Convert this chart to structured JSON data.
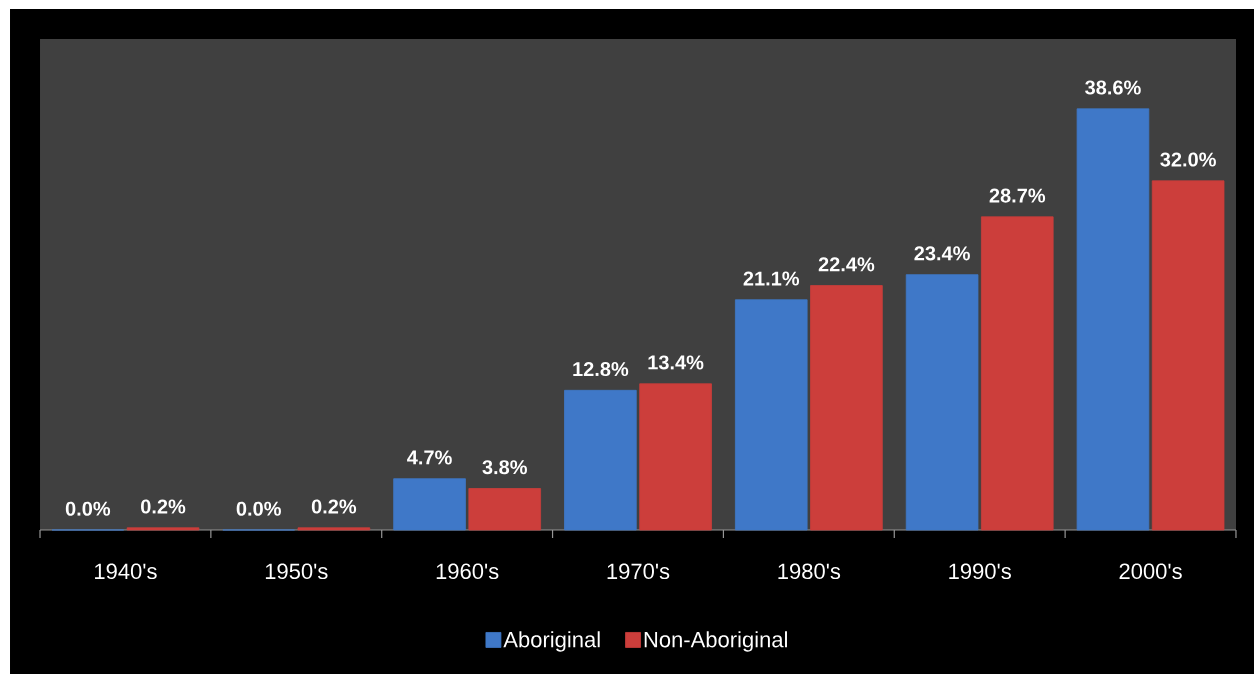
{
  "chart_data": {
    "type": "bar",
    "categories": [
      "1940's",
      "1950's",
      "1960's",
      "1970's",
      "1980's",
      "1990's",
      "2000's"
    ],
    "series": [
      {
        "name": "Aboriginal",
        "color": "#3f78c8",
        "values": [
          0.0,
          0.0,
          4.7,
          12.8,
          21.1,
          23.4,
          38.6
        ],
        "value_labels": [
          "0.0%",
          "0.0%",
          "4.7%",
          "12.8%",
          "21.1%",
          "23.4%",
          "38.6%"
        ]
      },
      {
        "name": "Non-Aboriginal",
        "color": "#cc3e3b",
        "values": [
          0.2,
          0.2,
          3.8,
          13.4,
          22.4,
          28.7,
          32.0
        ],
        "value_labels": [
          "0.2%",
          "0.2%",
          "3.8%",
          "13.4%",
          "22.4%",
          "28.7%",
          "32.0%"
        ]
      }
    ],
    "ylim": [
      0,
      45
    ],
    "legend": "bottom",
    "tick_labels": "x"
  }
}
